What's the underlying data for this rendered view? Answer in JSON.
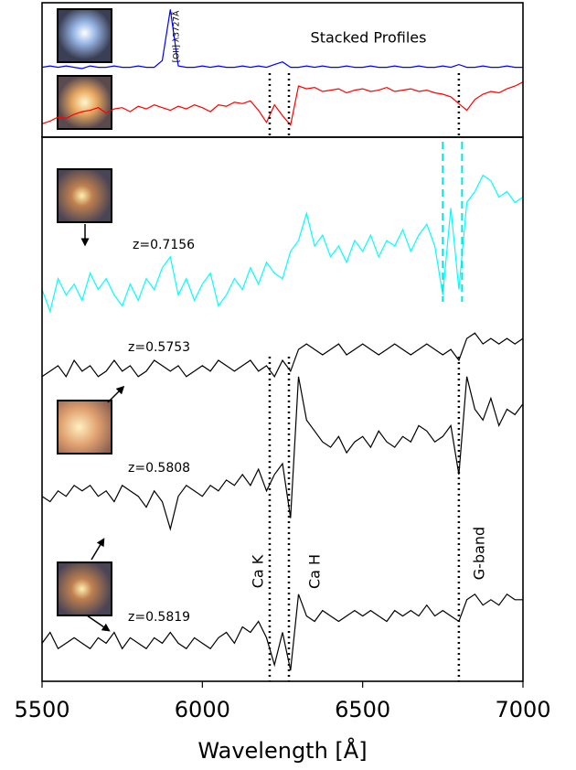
{
  "chart_data": [
    {
      "type": "line",
      "title": "Stacked Profiles",
      "annotations": [
        "[OII] λ3727Å"
      ],
      "x": [
        5500,
        5525,
        5550,
        5575,
        5600,
        5625,
        5650,
        5675,
        5700,
        5725,
        5750,
        5775,
        5800,
        5825,
        5850,
        5875,
        5900,
        5925,
        5950,
        5975,
        6000,
        6025,
        6050,
        6075,
        6100,
        6125,
        6150,
        6175,
        6200,
        6225,
        6250,
        6275,
        6300,
        6325,
        6350,
        6375,
        6400,
        6425,
        6450,
        6475,
        6500,
        6525,
        6550,
        6575,
        6600,
        6625,
        6650,
        6675,
        6700,
        6725,
        6750,
        6775,
        6800,
        6825,
        6850,
        6875,
        6900,
        6925,
        6950,
        6975,
        7000
      ],
      "xlim": [
        5500,
        7000
      ],
      "ylim": [
        0,
        100
      ],
      "vlines": [
        6210,
        6270,
        6800
      ],
      "series": [
        {
          "color": "#0000ff",
          "values": [
            52,
            53,
            52,
            53,
            52,
            51,
            53,
            52,
            52,
            53,
            52,
            52,
            53,
            52,
            52,
            57,
            95,
            53,
            52,
            52,
            53,
            52,
            53,
            52,
            52,
            53,
            52,
            53,
            52,
            54,
            56,
            52,
            52,
            53,
            52,
            53,
            52,
            52,
            53,
            52,
            52,
            53,
            52,
            52,
            53,
            52,
            52,
            53,
            52,
            52,
            53,
            52,
            54,
            52,
            52,
            53,
            52,
            52,
            53,
            52,
            52
          ]
        },
        {
          "color": "#ff0000",
          "values": [
            10,
            12,
            15,
            14,
            17,
            19,
            20,
            22,
            18,
            21,
            22,
            19,
            23,
            21,
            24,
            22,
            20,
            23,
            21,
            24,
            22,
            19,
            24,
            23,
            26,
            25,
            27,
            20,
            11,
            24,
            16,
            9,
            38,
            36,
            37,
            34,
            35,
            36,
            33,
            35,
            36,
            34,
            35,
            37,
            34,
            35,
            36,
            34,
            35,
            33,
            32,
            30,
            25,
            20,
            28,
            32,
            34,
            33,
            36,
            38,
            41
          ]
        }
      ]
    },
    {
      "type": "line",
      "xlabel": "Wavelength [Å]",
      "annotations": [
        "Ca K",
        "Ca H",
        "G-band"
      ],
      "x": [
        5500,
        5525,
        5550,
        5575,
        5600,
        5625,
        5650,
        5675,
        5700,
        5725,
        5750,
        5775,
        5800,
        5825,
        5850,
        5875,
        5900,
        5925,
        5950,
        5975,
        6000,
        6025,
        6050,
        6075,
        6100,
        6125,
        6150,
        6175,
        6200,
        6225,
        6250,
        6275,
        6300,
        6325,
        6350,
        6375,
        6400,
        6425,
        6450,
        6475,
        6500,
        6525,
        6550,
        6575,
        6600,
        6625,
        6650,
        6675,
        6700,
        6725,
        6750,
        6775,
        6800,
        6825,
        6850,
        6875,
        6900,
        6925,
        6950,
        6975,
        7000
      ],
      "xlim": [
        5500,
        7000
      ],
      "ylim": [
        0,
        100
      ],
      "xticks": [
        5500,
        6000,
        6500,
        7000
      ],
      "vlines": [
        6210,
        6270,
        6800
      ],
      "dashed_vlines": [
        6750,
        6810
      ],
      "dashed_color": "#00e5e5",
      "series": [
        {
          "name": "z=0.7156",
          "color": "#00ffff",
          "values": [
            72,
            68,
            74,
            71,
            73,
            70,
            75,
            72,
            74,
            71,
            69,
            73,
            70,
            74,
            72,
            76,
            78,
            71,
            74,
            70,
            73,
            75,
            69,
            71,
            74,
            72,
            76,
            73,
            77,
            75,
            74,
            79,
            81,
            86,
            80,
            82,
            78,
            80,
            77,
            81,
            79,
            82,
            78,
            81,
            80,
            83,
            79,
            82,
            84,
            80,
            71,
            87,
            72,
            88,
            90,
            93,
            92,
            89,
            90,
            88,
            89
          ]
        },
        {
          "name": "z=0.5753",
          "color": "#000000",
          "values": [
            56,
            57,
            58,
            56,
            59,
            57,
            58,
            56,
            57,
            59,
            57,
            58,
            56,
            57,
            59,
            58,
            57,
            58,
            56,
            57,
            58,
            57,
            59,
            58,
            57,
            58,
            59,
            57,
            58,
            56,
            59,
            57,
            61,
            62,
            61,
            60,
            61,
            62,
            60,
            61,
            62,
            61,
            60,
            61,
            62,
            61,
            60,
            61,
            62,
            61,
            60,
            61,
            59,
            63,
            64,
            62,
            63,
            62,
            63,
            62,
            63
          ]
        },
        {
          "name": "z=0.5808",
          "color": "#000000",
          "values": [
            34,
            33,
            35,
            34,
            36,
            35,
            36,
            34,
            35,
            33,
            36,
            35,
            34,
            32,
            35,
            33,
            28,
            34,
            36,
            35,
            34,
            36,
            35,
            37,
            36,
            38,
            36,
            39,
            35,
            38,
            40,
            30,
            56,
            48,
            46,
            44,
            43,
            45,
            42,
            44,
            45,
            43,
            46,
            44,
            43,
            45,
            44,
            47,
            46,
            44,
            45,
            47,
            38,
            56,
            50,
            48,
            52,
            47,
            50,
            49,
            51
          ]
        },
        {
          "name": "z=0.5819",
          "color": "#000000",
          "values": [
            7,
            9,
            6,
            7,
            8,
            7,
            6,
            8,
            7,
            9,
            6,
            8,
            7,
            6,
            8,
            7,
            9,
            7,
            6,
            8,
            7,
            6,
            8,
            9,
            7,
            10,
            9,
            11,
            8,
            3,
            9,
            2,
            16,
            12,
            11,
            13,
            12,
            11,
            12,
            13,
            12,
            13,
            12,
            11,
            13,
            12,
            13,
            12,
            14,
            12,
            13,
            12,
            11,
            15,
            16,
            14,
            15,
            14,
            16,
            15,
            15
          ]
        }
      ]
    }
  ]
}
